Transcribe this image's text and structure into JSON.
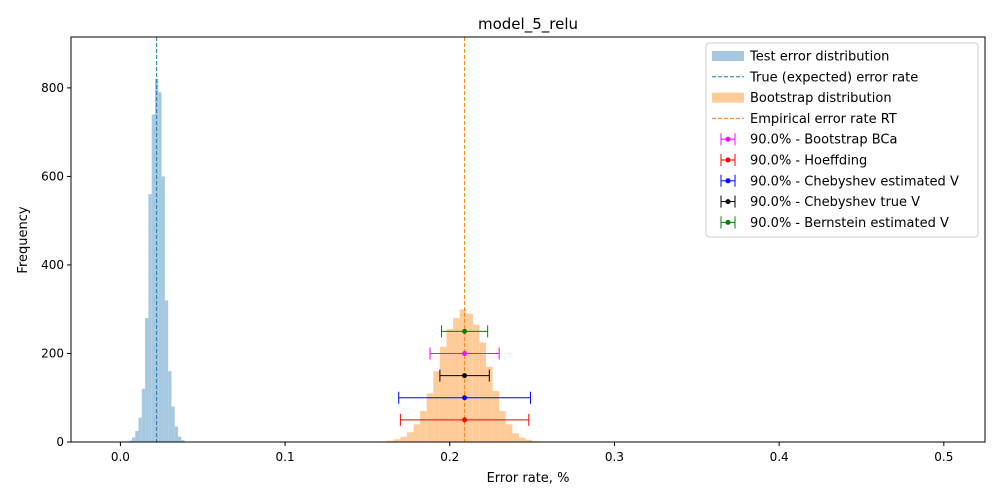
{
  "chart_data": {
    "type": "bar",
    "title": "model_5_relu",
    "xlabel": "Error rate, %",
    "ylabel": "Frequency",
    "xlim": [
      -0.03,
      0.525
    ],
    "ylim": [
      0,
      915
    ],
    "xticks": [
      0.0,
      0.1,
      0.2,
      0.3,
      0.4,
      0.5
    ],
    "xtick_labels": [
      "0.0",
      "0.1",
      "0.2",
      "0.3",
      "0.4",
      "0.5"
    ],
    "yticks": [
      0,
      200,
      400,
      600,
      800
    ],
    "ytick_labels": [
      "0",
      "200",
      "400",
      "600",
      "800"
    ],
    "legend_position": "top-right",
    "series": [
      {
        "name": "Test error distribution",
        "kind": "histogram",
        "color": "#a6c8e0",
        "x": [
          0.006,
          0.008,
          0.01,
          0.012,
          0.014,
          0.016,
          0.018,
          0.02,
          0.022,
          0.024,
          0.026,
          0.028,
          0.03,
          0.032,
          0.034,
          0.036,
          0.038
        ],
        "values": [
          3,
          10,
          25,
          55,
          120,
          280,
          560,
          740,
          820,
          790,
          600,
          320,
          160,
          80,
          35,
          12,
          4
        ]
      },
      {
        "name": "Bootstrap distribution",
        "kind": "histogram",
        "color": "#ffcc99",
        "x": [
          0.164,
          0.168,
          0.172,
          0.176,
          0.18,
          0.184,
          0.188,
          0.192,
          0.196,
          0.2,
          0.204,
          0.208,
          0.212,
          0.216,
          0.22,
          0.224,
          0.228,
          0.232,
          0.236,
          0.24,
          0.244,
          0.248,
          0.252,
          0.256
        ],
        "values": [
          3,
          6,
          12,
          22,
          40,
          70,
          110,
          160,
          215,
          255,
          280,
          300,
          290,
          265,
          225,
          170,
          115,
          70,
          40,
          20,
          10,
          5,
          2,
          1
        ]
      }
    ],
    "reference_lines": [
      {
        "name": "True (expected) error rate",
        "x": 0.022,
        "color": "#1f77b4",
        "style": "dashed"
      },
      {
        "name": "Empirical error rate RT",
        "x": 0.209,
        "color": "#ff7f0e",
        "style": "dashed"
      }
    ],
    "intervals": [
      {
        "name": "90.0% - Bootstrap BCa",
        "color": "#ff00ff",
        "center": 0.209,
        "low": 0.188,
        "high": 0.23,
        "y": 200
      },
      {
        "name": "90.0% - Hoeffding",
        "color": "#ff0000",
        "center": 0.209,
        "low": 0.17,
        "high": 0.248,
        "y": 50
      },
      {
        "name": "90.0% - Chebyshev estimated V",
        "color": "#0000ff",
        "center": 0.209,
        "low": 0.169,
        "high": 0.249,
        "y": 100
      },
      {
        "name": "90.0% - Chebyshev true V",
        "color": "#000000",
        "center": 0.209,
        "low": 0.194,
        "high": 0.224,
        "y": 150
      },
      {
        "name": "90.0% - Bernstein estimated V",
        "color": "#008000",
        "center": 0.209,
        "low": 0.195,
        "high": 0.223,
        "y": 250
      }
    ],
    "legend": [
      {
        "label": "Test error distribution",
        "kind": "patch",
        "color": "#a6c8e0"
      },
      {
        "label": "True (expected) error rate",
        "kind": "dashed",
        "color": "#1f77b4"
      },
      {
        "label": "Bootstrap distribution",
        "kind": "patch",
        "color": "#ffcc99"
      },
      {
        "label": "Empirical error rate RT",
        "kind": "dashed",
        "color": "#ff7f0e"
      },
      {
        "label": "90.0% - Bootstrap BCa",
        "kind": "errorbar",
        "color": "#ff00ff"
      },
      {
        "label": "90.0% - Hoeffding",
        "kind": "errorbar",
        "color": "#ff0000"
      },
      {
        "label": "90.0% - Chebyshev estimated V",
        "kind": "errorbar",
        "color": "#0000ff"
      },
      {
        "label": "90.0% - Chebyshev true V",
        "kind": "errorbar",
        "color": "#000000"
      },
      {
        "label": "90.0% - Bernstein estimated V",
        "kind": "errorbar",
        "color": "#008000"
      }
    ]
  }
}
